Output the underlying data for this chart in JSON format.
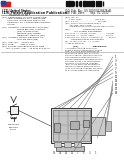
{
  "background_color": "#ffffff",
  "barcode_color": "#111111",
  "text_dark": "#1a1a1a",
  "text_mid": "#333333",
  "text_light": "#555555",
  "line_color": "#888888",
  "diagram_block_fill": "#d0d0d0",
  "diagram_block_edge": "#444444",
  "diagram_inner_fill": "#b8b8b8",
  "diagram_inner_edge": "#333333"
}
